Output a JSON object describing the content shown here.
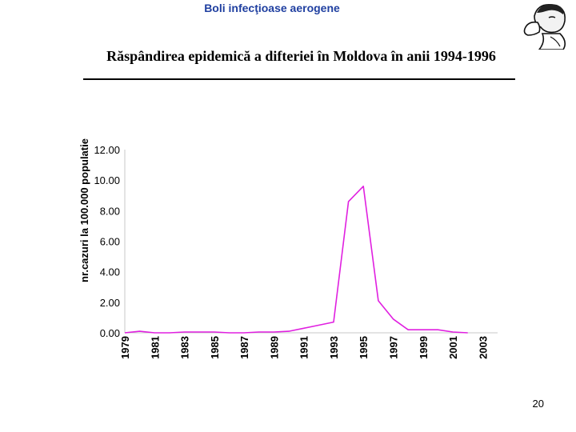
{
  "header": {
    "text": "Boli infecţioase aerogene"
  },
  "slide": {
    "title": "Răspândirea epidemică a difteriei în Moldova în anii 1994-1996",
    "page_number": "20"
  },
  "colors": {
    "header": "#1f3fa0",
    "series": "#e020e0",
    "axis": "#c8c8c8"
  },
  "logo": {
    "icon": "thinking-man-icon"
  },
  "chart_data": {
    "type": "line",
    "ylabel": "nr.cazuri la 100.000 populatie",
    "xlabel": "",
    "ylim": [
      0,
      12
    ],
    "yticks": [
      "0.00",
      "2.00",
      "4.00",
      "6.00",
      "8.00",
      "10.00",
      "12.00"
    ],
    "xtick_labels": [
      "1979",
      "1981",
      "1983",
      "1985",
      "1987",
      "1989",
      "1991",
      "1993",
      "1995",
      "1997",
      "1999",
      "2001",
      "2003"
    ],
    "x": [
      1979,
      1980,
      1981,
      1982,
      1983,
      1984,
      1985,
      1986,
      1987,
      1988,
      1989,
      1990,
      1991,
      1992,
      1993,
      1994,
      1995,
      1996,
      1997,
      1998,
      1999,
      2000,
      2001,
      2002
    ],
    "series": [
      {
        "name": "",
        "values": [
          0,
          0.1,
          0,
          0,
          0.05,
          0.05,
          0.05,
          0,
          0,
          0.05,
          0.05,
          0.1,
          0.3,
          0.5,
          0.7,
          8.6,
          9.6,
          2.1,
          0.9,
          0.2,
          0.2,
          0.2,
          0.05,
          0
        ]
      }
    ],
    "grid": false,
    "legend": "none"
  }
}
